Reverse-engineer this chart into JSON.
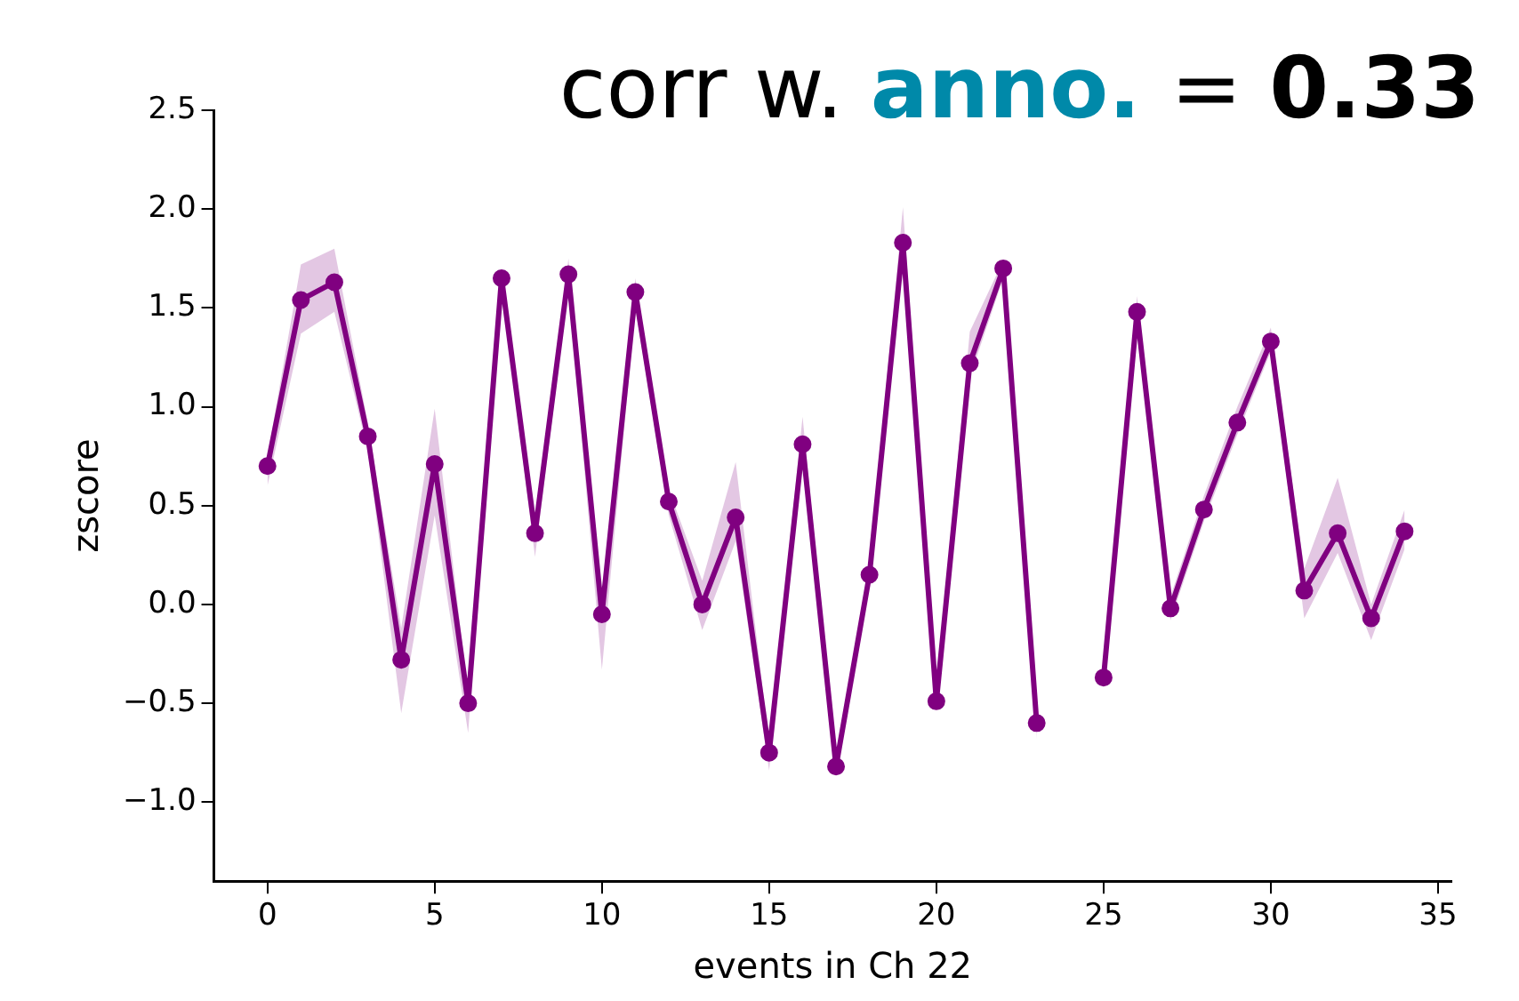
{
  "chart_data": {
    "type": "line",
    "title": "corr w. anno. = 0.33",
    "xlabel": "events in Ch 22",
    "ylabel": "zscore",
    "x": [
      0,
      1,
      2,
      3,
      4,
      5,
      6,
      7,
      8,
      9,
      10,
      11,
      12,
      13,
      14,
      15,
      16,
      17,
      18,
      19,
      20,
      21,
      22,
      23,
      24,
      25,
      26,
      27,
      28,
      29,
      30,
      31,
      32,
      33,
      34
    ],
    "series": [
      {
        "color": "#800080",
        "values": [
          0.7,
          1.54,
          1.63,
          0.85,
          -0.28,
          0.71,
          -0.5,
          1.65,
          0.36,
          1.67,
          -0.05,
          1.58,
          0.52,
          0.0,
          0.44,
          -0.75,
          0.81,
          -0.82,
          0.15,
          1.83,
          -0.49,
          1.22,
          1.7,
          -0.6,
          null,
          -0.37,
          1.48,
          -0.02,
          0.48,
          0.92,
          1.33,
          0.07,
          0.36,
          -0.07,
          0.37
        ],
        "lower": [
          0.6,
          1.37,
          1.48,
          0.78,
          -0.55,
          0.45,
          -0.65,
          1.6,
          0.24,
          1.6,
          -0.33,
          1.5,
          0.45,
          -0.13,
          0.32,
          -0.84,
          0.75,
          -0.86,
          0.1,
          1.75,
          -0.53,
          1.15,
          1.65,
          -0.68,
          null,
          -0.42,
          1.42,
          -0.08,
          0.42,
          0.86,
          1.28,
          -0.07,
          0.26,
          -0.18,
          0.28
        ],
        "upper": [
          0.75,
          1.72,
          1.8,
          0.92,
          -0.12,
          0.99,
          -0.45,
          1.7,
          0.42,
          1.75,
          0.0,
          1.65,
          0.58,
          0.12,
          0.72,
          -0.7,
          0.95,
          -0.78,
          0.2,
          2.01,
          -0.42,
          1.38,
          1.74,
          -0.52,
          null,
          -0.32,
          1.56,
          0.04,
          0.55,
          1.0,
          1.4,
          0.18,
          0.64,
          0.0,
          0.48
        ]
      }
    ],
    "xlim": [
      -1.6,
      35.4
    ],
    "xticks": [
      0,
      5,
      10,
      15,
      20,
      25,
      30,
      35
    ],
    "ylim": [
      -1.4,
      2.5
    ],
    "yticks": [
      {
        "value": -1,
        "label": "−1.0"
      },
      -0.5,
      {
        "value": 0,
        "label": "0.0"
      },
      0.5,
      {
        "value": 1,
        "label": "1.0"
      },
      1.5,
      {
        "value": 2,
        "label": "2.0"
      },
      2.5
    ],
    "grid": false,
    "legend": false,
    "marker": "circle",
    "line_style": "solid"
  }
}
